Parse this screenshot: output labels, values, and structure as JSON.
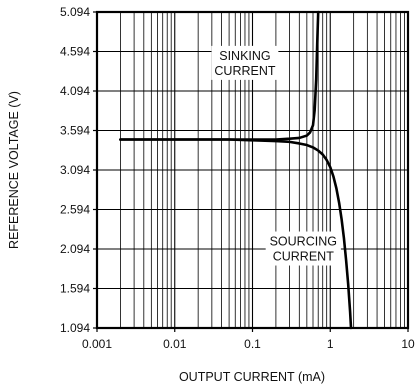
{
  "chart_data": {
    "type": "line",
    "title": "",
    "xlabel": "OUTPUT CURRENT (mA)",
    "ylabel": "REFERENCE VOLTAGE (V)",
    "xscale": "log",
    "xlim": [
      0.001,
      10
    ],
    "ylim": [
      1.094,
      5.094
    ],
    "grid": true,
    "x_tick_labels": [
      "0.001",
      "0.01",
      "0.1",
      "1",
      "10"
    ],
    "x_ticks": [
      0.001,
      0.01,
      0.1,
      1,
      10
    ],
    "y_tick_labels": [
      "5.094",
      "4.594",
      "4.094",
      "3.594",
      "3.094",
      "2.594",
      "2.094",
      "1.594",
      "1.094"
    ],
    "y_ticks": [
      5.094,
      4.594,
      4.094,
      3.594,
      3.094,
      2.594,
      2.094,
      1.594,
      1.094
    ],
    "series": [
      {
        "name": "SINKING CURRENT",
        "x": [
          0.002,
          0.01,
          0.05,
          0.1,
          0.2,
          0.3,
          0.4,
          0.5,
          0.55,
          0.6,
          0.63,
          0.66,
          0.68,
          0.7
        ],
        "y": [
          3.48,
          3.48,
          3.48,
          3.48,
          3.48,
          3.49,
          3.5,
          3.53,
          3.57,
          3.66,
          3.85,
          4.25,
          4.7,
          5.094
        ]
      },
      {
        "name": "SOURCING CURRENT",
        "x": [
          0.002,
          0.01,
          0.05,
          0.1,
          0.2,
          0.3,
          0.4,
          0.5,
          0.6,
          0.7,
          0.8,
          0.9,
          1.0,
          1.1,
          1.2,
          1.3,
          1.4,
          1.5,
          1.6,
          1.7,
          1.8,
          1.85
        ],
        "y": [
          3.48,
          3.48,
          3.48,
          3.47,
          3.46,
          3.45,
          3.43,
          3.41,
          3.38,
          3.34,
          3.29,
          3.22,
          3.13,
          3.01,
          2.86,
          2.68,
          2.47,
          2.23,
          1.95,
          1.65,
          1.3,
          1.094
        ]
      }
    ],
    "annotations": [
      {
        "text": [
          "SINKING",
          "CURRENT"
        ],
        "x": 0.08,
        "y": 4.45
      },
      {
        "text": [
          "SOURCING",
          "CURRENT"
        ],
        "x": 0.45,
        "y": 2.1
      }
    ]
  }
}
